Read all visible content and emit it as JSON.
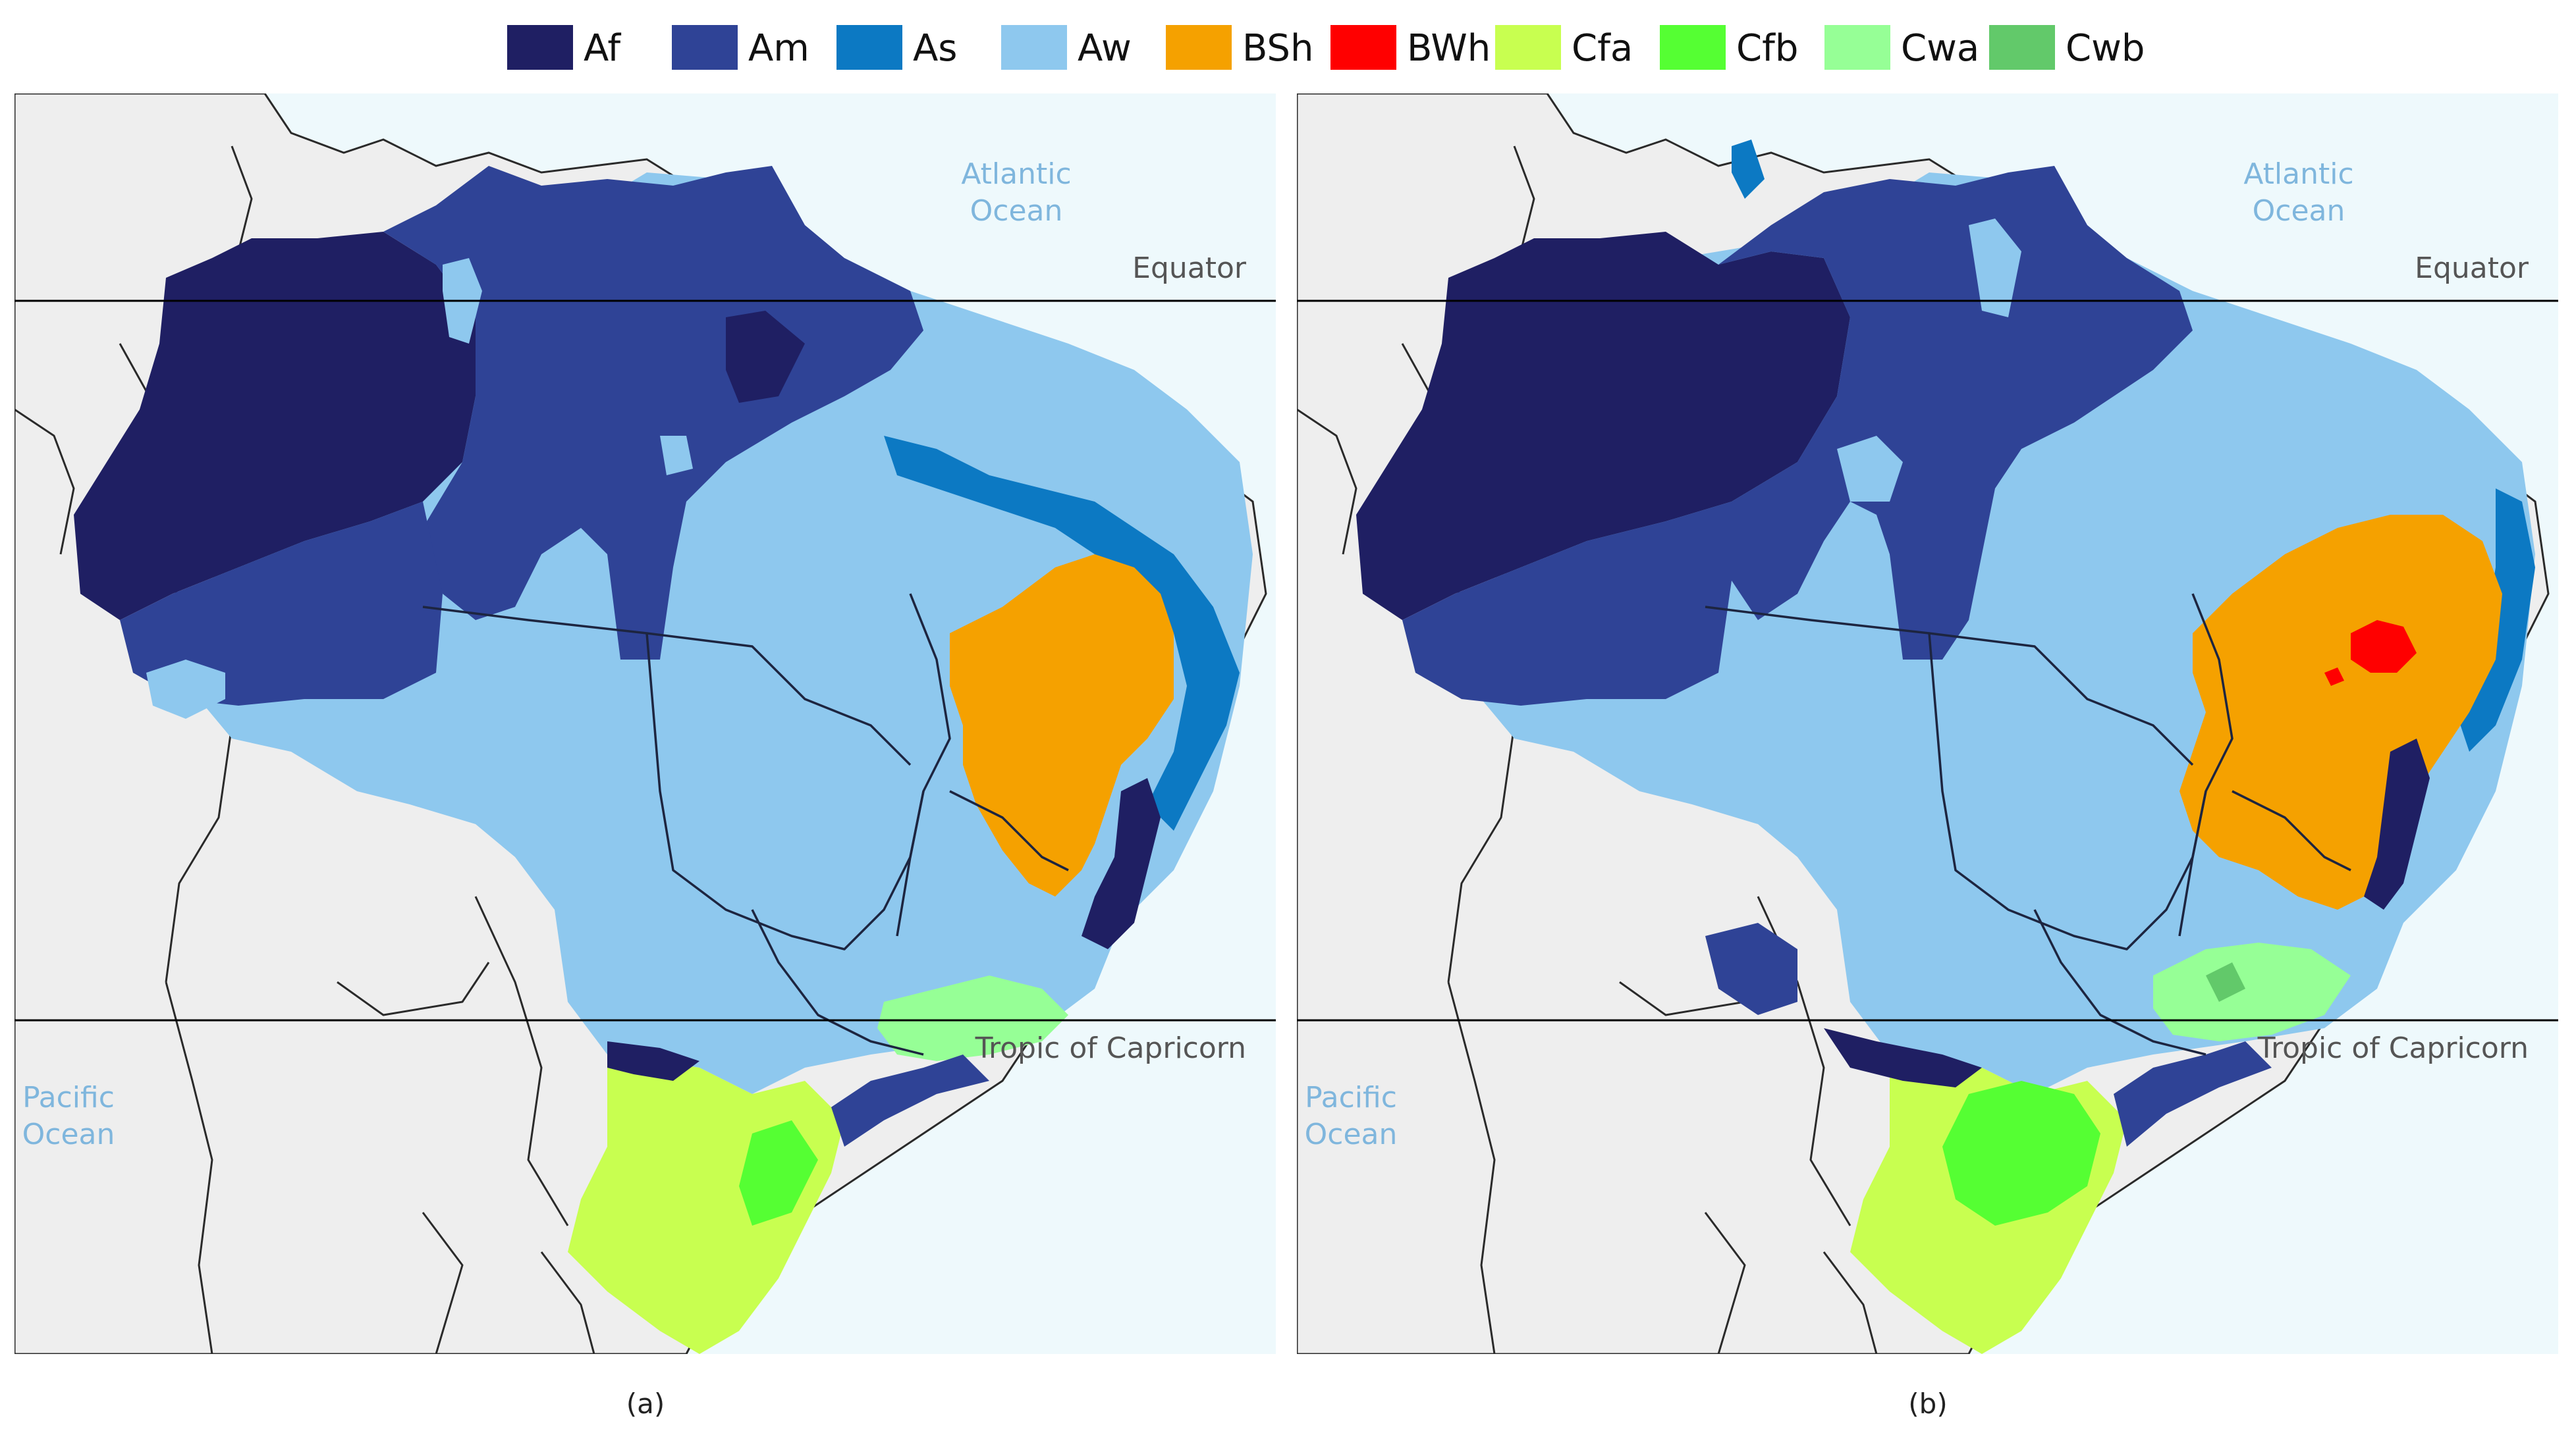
{
  "legend": [
    {
      "code": "Af",
      "color": "#1f1f63"
    },
    {
      "code": "Am",
      "color": "#2f4396"
    },
    {
      "code": "As",
      "color": "#0c79c3"
    },
    {
      "code": "Aw",
      "color": "#8ec8ee"
    },
    {
      "code": "BSh",
      "color": "#f5a100"
    },
    {
      "code": "BWh",
      "color": "#ff0000"
    },
    {
      "code": "Cfa",
      "color": "#c8ff50"
    },
    {
      "code": "Cfb",
      "color": "#55ff33"
    },
    {
      "code": "Cwa",
      "color": "#96ff96"
    },
    {
      "code": "Cwb",
      "color": "#62c96a"
    }
  ],
  "colors": {
    "ocean": "#eef9fc",
    "land": "#eeeeee",
    "country_border": "#2a2a2a"
  },
  "panels": [
    {
      "label": "(a)",
      "ocean_atlantic": [
        "Atlantic",
        "Ocean"
      ],
      "equator": "Equator",
      "tropic": "Tropic of Capricorn",
      "ocean_pacific": [
        "Pacific",
        "Ocean"
      ],
      "bwh_present": false
    },
    {
      "label": "(b)",
      "ocean_atlantic": [
        "Atlantic",
        "Ocean"
      ],
      "equator": "Equator",
      "tropic": "Tropic of Capricorn",
      "ocean_pacific": [
        "Pacific",
        "Ocean"
      ],
      "bwh_present": true
    }
  ]
}
